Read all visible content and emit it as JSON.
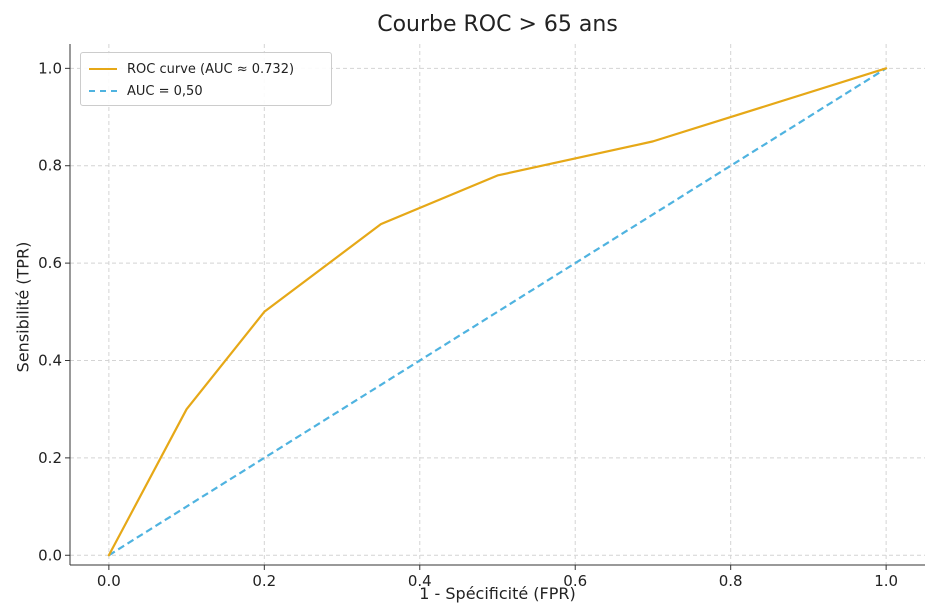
{
  "chart_data": {
    "type": "line",
    "title": "Courbe ROC > 65 ans",
    "xlabel": "1 - Spécificité (FPR)",
    "ylabel": "Sensibilité (TPR)",
    "xlim": [
      -0.05,
      1.05
    ],
    "ylim": [
      -0.02,
      1.05
    ],
    "xticks": [
      "0.0",
      "0.2",
      "0.4",
      "0.6",
      "0.8",
      "1.0"
    ],
    "yticks": [
      "0.0",
      "0.2",
      "0.4",
      "0.6",
      "0.8",
      "1.0"
    ],
    "grid": true,
    "legend_position": "top-left",
    "series": [
      {
        "name": "ROC curve (AUC ≈ 0.732)",
        "color": "#E6A817",
        "style": "solid",
        "x": [
          0.0,
          0.1,
          0.2,
          0.35,
          0.5,
          0.7,
          1.0
        ],
        "y": [
          0.0,
          0.3,
          0.5,
          0.68,
          0.78,
          0.85,
          1.0
        ]
      },
      {
        "name": "AUC = 0,50",
        "color": "#4FB3E0",
        "style": "dashed",
        "x": [
          0.0,
          1.0
        ],
        "y": [
          0.0,
          1.0
        ]
      }
    ]
  }
}
